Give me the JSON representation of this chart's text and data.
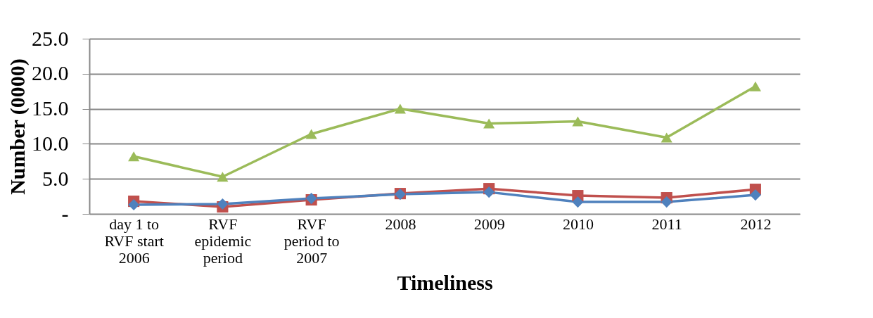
{
  "chart_data": {
    "type": "line",
    "xlabel": "Timeliness",
    "ylabel": "Number (0000)",
    "categories": [
      "day 1 to RVF start 2006",
      "RVF epidemic period",
      "RVF period to 2007",
      "2008",
      "2009",
      "2010",
      "2011",
      "2012"
    ],
    "series": [
      {
        "color": "#4f81bd",
        "marker": "diamond",
        "values": [
          1.3,
          1.4,
          2.2,
          2.8,
          3.1,
          1.7,
          1.7,
          2.7
        ]
      },
      {
        "color": "#c0504d",
        "marker": "square",
        "values": [
          1.8,
          1.0,
          2.0,
          2.9,
          3.6,
          2.6,
          2.3,
          3.5
        ]
      },
      {
        "color": "#9bbb59",
        "marker": "triangle",
        "values": [
          8.2,
          5.3,
          11.4,
          15.0,
          12.9,
          13.2,
          10.9,
          18.2
        ]
      }
    ],
    "ylim": [
      0,
      25
    ],
    "yticks": [
      {
        "value": 0,
        "label": "-"
      },
      {
        "value": 5,
        "label": "5.0"
      },
      {
        "value": 10,
        "label": "10.0"
      },
      {
        "value": 15,
        "label": "15.0"
      },
      {
        "value": 20,
        "label": "20.0"
      },
      {
        "value": 25,
        "label": "25.0"
      }
    ],
    "grid": "y",
    "line_style": "solid"
  }
}
